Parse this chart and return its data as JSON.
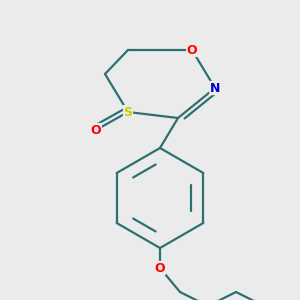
{
  "background_color": "#ebebeb",
  "bond_color": "#2d7070",
  "atom_colors": {
    "O": "#ff0000",
    "N": "#0000cc",
    "S": "#cccc00",
    "C": "#2d7070"
  },
  "figsize": [
    3.0,
    3.0
  ],
  "dpi": 100
}
